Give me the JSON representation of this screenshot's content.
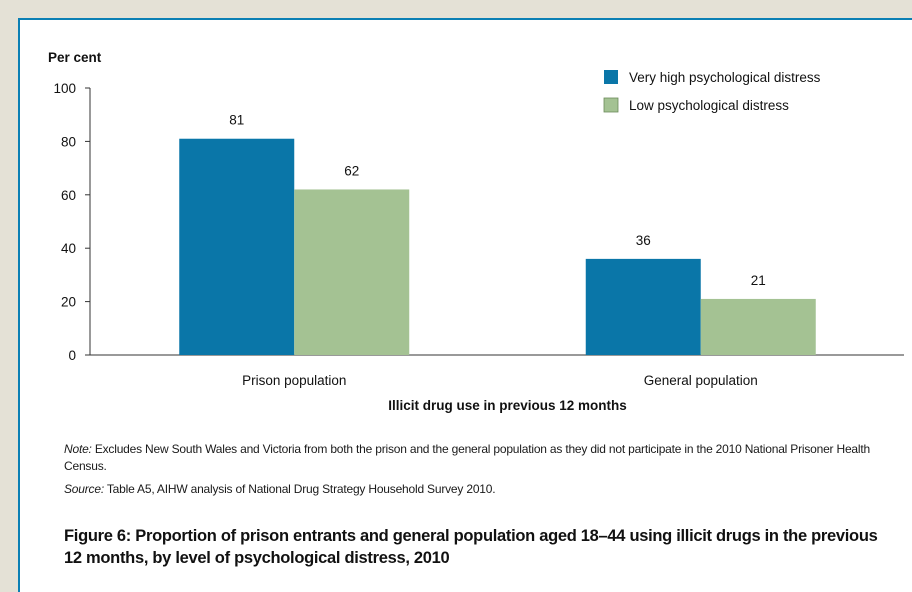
{
  "chart_data": {
    "type": "bar",
    "ylabel": "Per cent",
    "xlabel": "Illicit drug use in previous 12 months",
    "categories": [
      "Prison population",
      "General population"
    ],
    "series": [
      {
        "name": "Very high psychological distress",
        "values": [
          81,
          36
        ],
        "color": "#0a76a8"
      },
      {
        "name": "Low psychological distress",
        "values": [
          62,
          21
        ],
        "color": "#a4c293"
      }
    ],
    "ylim": [
      0,
      100
    ],
    "yticks": [
      0,
      20,
      40,
      60,
      80,
      100
    ],
    "grid": false,
    "legend": "top-right"
  },
  "notes": {
    "note_label": "Note:",
    "note_text": " Excludes New South Wales and Victoria from both the prison and the general population as they did not participate in the 2010 National Prisoner Health Census.",
    "source_label": "Source:",
    "source_text": " Table A5, AIHW analysis of National Drug Strategy Household Survey 2010."
  },
  "figure_caption": "Figure 6: Proportion of prison entrants and general population aged 18–44 using illicit drugs in the previous 12 months, by level of psychological distress, 2010"
}
